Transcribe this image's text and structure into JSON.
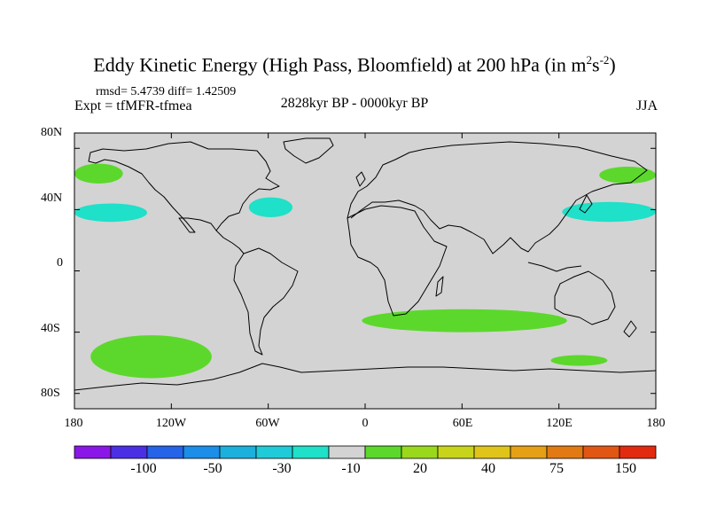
{
  "title": {
    "main": "Eddy Kinetic Energy (High Pass, Bloomfield) at 200 hPa (in m",
    "sup1": "2",
    "mid": "s",
    "sup2": "-2",
    "close": ")"
  },
  "stats": {
    "rmsd": "rmsd= 5.4739 diff= 1.42509"
  },
  "experiment": "Expt = tfMFR-tfmea",
  "period": "2828kyr BP - 0000kyr BP",
  "season": "JJA",
  "map": {
    "lat_labels": [
      "80N",
      "40N",
      "0",
      "40S",
      "80S"
    ],
    "lon_labels": [
      "180",
      "120W",
      "60W",
      "0",
      "60E",
      "120E",
      "180"
    ],
    "lon_range": [
      -180,
      180
    ],
    "lat_range": [
      -90,
      90
    ],
    "background_color": "#d3d3d3",
    "anomalies": [
      {
        "name": "north-pacific-west",
        "value": -10,
        "color": "#1fe0c8",
        "lon": [
          -180,
          -135
        ],
        "lat": [
          32,
          44
        ]
      },
      {
        "name": "north-atlantic",
        "value": -10,
        "color": "#1fe0c8",
        "lon": [
          -72,
          -45
        ],
        "lat": [
          35,
          48
        ]
      },
      {
        "name": "north-pacific-east",
        "value": -10,
        "color": "#1fe0c8",
        "lon": [
          122,
          180
        ],
        "lat": [
          32,
          45
        ]
      },
      {
        "name": "alaska-bering",
        "value": 20,
        "color": "#5cd82c",
        "lon": [
          -180,
          -150
        ],
        "lat": [
          57,
          70
        ]
      },
      {
        "name": "okhotsk",
        "value": 20,
        "color": "#5cd82c",
        "lon": [
          145,
          180
        ],
        "lat": [
          57,
          68
        ]
      },
      {
        "name": "south-pacific",
        "value": 20,
        "color": "#5cd82c",
        "lon": [
          -170,
          -95
        ],
        "lat": [
          -70,
          -42
        ]
      },
      {
        "name": "south-indian",
        "value": 20,
        "color": "#5cd82c",
        "lon": [
          -2,
          125
        ],
        "lat": [
          -40,
          -25
        ]
      },
      {
        "name": "south-australia",
        "value": 20,
        "color": "#5cd82c",
        "lon": [
          115,
          150
        ],
        "lat": [
          -62,
          -55
        ]
      }
    ]
  },
  "colorbar": {
    "colors": [
      "#8a17e8",
      "#4b2fe4",
      "#2563e8",
      "#1a8ee8",
      "#1cb0dc",
      "#1fcbd8",
      "#1fe0c8",
      "#d3d3d3",
      "#5cd82c",
      "#9ad81c",
      "#c8d41a",
      "#e0c41a",
      "#e6a016",
      "#e27a14",
      "#e25614",
      "#e22a10"
    ],
    "labels": [
      "-100",
      "-50",
      "-30",
      "-10",
      "20",
      "40",
      "75",
      "150"
    ]
  }
}
